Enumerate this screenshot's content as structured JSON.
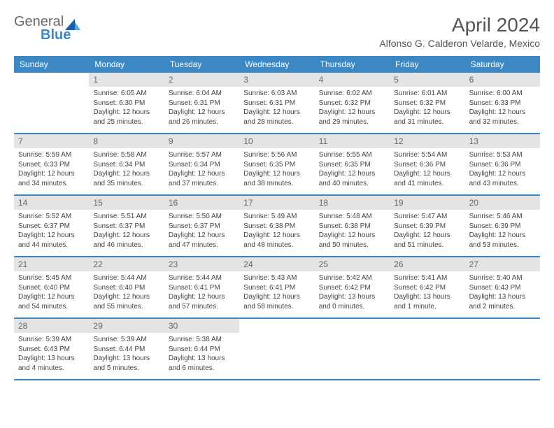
{
  "logo": {
    "word1": "General",
    "word2": "Blue"
  },
  "title": "April 2024",
  "location": "Alfonso G. Calderon Velarde, Mexico",
  "colors": {
    "header_bg": "#3b88c4",
    "header_text": "#ffffff",
    "daynum_bg": "#e4e4e4",
    "daynum_text": "#666666",
    "body_text": "#444444",
    "title_text": "#555555",
    "rule": "#3b88c4"
  },
  "fonts": {
    "title_pt": 28,
    "location_pt": 14,
    "dayheader_pt": 12,
    "daynum_pt": 12,
    "body_pt": 10
  },
  "day_names": [
    "Sunday",
    "Monday",
    "Tuesday",
    "Wednesday",
    "Thursday",
    "Friday",
    "Saturday"
  ],
  "weeks": [
    [
      null,
      {
        "n": "1",
        "sr": "6:05 AM",
        "ss": "6:30 PM",
        "dl": "12 hours and 25 minutes."
      },
      {
        "n": "2",
        "sr": "6:04 AM",
        "ss": "6:31 PM",
        "dl": "12 hours and 26 minutes."
      },
      {
        "n": "3",
        "sr": "6:03 AM",
        "ss": "6:31 PM",
        "dl": "12 hours and 28 minutes."
      },
      {
        "n": "4",
        "sr": "6:02 AM",
        "ss": "6:32 PM",
        "dl": "12 hours and 29 minutes."
      },
      {
        "n": "5",
        "sr": "6:01 AM",
        "ss": "6:32 PM",
        "dl": "12 hours and 31 minutes."
      },
      {
        "n": "6",
        "sr": "6:00 AM",
        "ss": "6:33 PM",
        "dl": "12 hours and 32 minutes."
      }
    ],
    [
      {
        "n": "7",
        "sr": "5:59 AM",
        "ss": "6:33 PM",
        "dl": "12 hours and 34 minutes."
      },
      {
        "n": "8",
        "sr": "5:58 AM",
        "ss": "6:34 PM",
        "dl": "12 hours and 35 minutes."
      },
      {
        "n": "9",
        "sr": "5:57 AM",
        "ss": "6:34 PM",
        "dl": "12 hours and 37 minutes."
      },
      {
        "n": "10",
        "sr": "5:56 AM",
        "ss": "6:35 PM",
        "dl": "12 hours and 38 minutes."
      },
      {
        "n": "11",
        "sr": "5:55 AM",
        "ss": "6:35 PM",
        "dl": "12 hours and 40 minutes."
      },
      {
        "n": "12",
        "sr": "5:54 AM",
        "ss": "6:36 PM",
        "dl": "12 hours and 41 minutes."
      },
      {
        "n": "13",
        "sr": "5:53 AM",
        "ss": "6:36 PM",
        "dl": "12 hours and 43 minutes."
      }
    ],
    [
      {
        "n": "14",
        "sr": "5:52 AM",
        "ss": "6:37 PM",
        "dl": "12 hours and 44 minutes."
      },
      {
        "n": "15",
        "sr": "5:51 AM",
        "ss": "6:37 PM",
        "dl": "12 hours and 46 minutes."
      },
      {
        "n": "16",
        "sr": "5:50 AM",
        "ss": "6:37 PM",
        "dl": "12 hours and 47 minutes."
      },
      {
        "n": "17",
        "sr": "5:49 AM",
        "ss": "6:38 PM",
        "dl": "12 hours and 48 minutes."
      },
      {
        "n": "18",
        "sr": "5:48 AM",
        "ss": "6:38 PM",
        "dl": "12 hours and 50 minutes."
      },
      {
        "n": "19",
        "sr": "5:47 AM",
        "ss": "6:39 PM",
        "dl": "12 hours and 51 minutes."
      },
      {
        "n": "20",
        "sr": "5:46 AM",
        "ss": "6:39 PM",
        "dl": "12 hours and 53 minutes."
      }
    ],
    [
      {
        "n": "21",
        "sr": "5:45 AM",
        "ss": "6:40 PM",
        "dl": "12 hours and 54 minutes."
      },
      {
        "n": "22",
        "sr": "5:44 AM",
        "ss": "6:40 PM",
        "dl": "12 hours and 55 minutes."
      },
      {
        "n": "23",
        "sr": "5:44 AM",
        "ss": "6:41 PM",
        "dl": "12 hours and 57 minutes."
      },
      {
        "n": "24",
        "sr": "5:43 AM",
        "ss": "6:41 PM",
        "dl": "12 hours and 58 minutes."
      },
      {
        "n": "25",
        "sr": "5:42 AM",
        "ss": "6:42 PM",
        "dl": "13 hours and 0 minutes."
      },
      {
        "n": "26",
        "sr": "5:41 AM",
        "ss": "6:42 PM",
        "dl": "13 hours and 1 minute."
      },
      {
        "n": "27",
        "sr": "5:40 AM",
        "ss": "6:43 PM",
        "dl": "13 hours and 2 minutes."
      }
    ],
    [
      {
        "n": "28",
        "sr": "5:39 AM",
        "ss": "6:43 PM",
        "dl": "13 hours and 4 minutes."
      },
      {
        "n": "29",
        "sr": "5:39 AM",
        "ss": "6:44 PM",
        "dl": "13 hours and 5 minutes."
      },
      {
        "n": "30",
        "sr": "5:38 AM",
        "ss": "6:44 PM",
        "dl": "13 hours and 6 minutes."
      },
      null,
      null,
      null,
      null
    ]
  ],
  "labels": {
    "sunrise_prefix": "Sunrise: ",
    "sunset_prefix": "Sunset: ",
    "daylight_prefix": "Daylight: "
  }
}
